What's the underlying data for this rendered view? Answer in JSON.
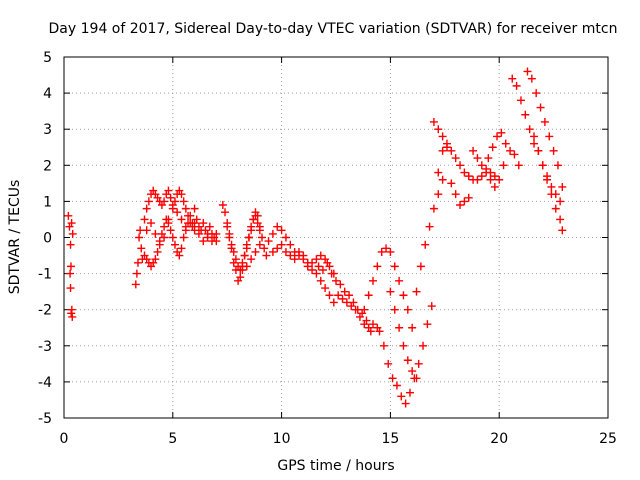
{
  "chart_data": {
    "type": "scatter",
    "title": "Day 194 of 2017, Sidereal Day-to-day VTEC variation (SDTVAR) for receiver mtcn",
    "xlabel": "GPS time / hours",
    "ylabel": "SDTVAR / TECUs",
    "xlim": [
      0,
      25
    ],
    "ylim": [
      -5,
      5
    ],
    "xticks": [
      0,
      5,
      10,
      15,
      20,
      25
    ],
    "yticks": [
      -5,
      -4,
      -3,
      -2,
      -1,
      0,
      1,
      2,
      3,
      4,
      5
    ],
    "grid": true,
    "marker": "+",
    "color": "#ff0000",
    "series": [
      {
        "name": "SDTVAR",
        "x": [
          0.2,
          0.25,
          0.3,
          0.35,
          0.4,
          0.32,
          0.28,
          0.3,
          0.33,
          0.36,
          0.38,
          3.3,
          3.35,
          3.4,
          3.45,
          3.5,
          3.55,
          3.6,
          3.7,
          3.8,
          3.9,
          4.0,
          4.1,
          4.2,
          4.3,
          4.4,
          4.5,
          4.6,
          4.7,
          4.8,
          4.9,
          5.0,
          5.1,
          5.2,
          5.3,
          5.4,
          5.5,
          5.6,
          5.7,
          5.8,
          5.9,
          6.0,
          6.1,
          6.2,
          6.3,
          6.4,
          6.5,
          6.6,
          6.7,
          6.8,
          6.9,
          7.0,
          3.7,
          3.8,
          3.9,
          4.0,
          4.1,
          4.2,
          4.3,
          4.4,
          4.5,
          4.6,
          4.7,
          4.8,
          4.9,
          5.0,
          5.1,
          5.2,
          5.3,
          5.4,
          5.5,
          5.6,
          5.7,
          5.8,
          5.9,
          6.0,
          6.2,
          6.4,
          6.6,
          6.8,
          7.0,
          3.8,
          4.0,
          4.2,
          4.4,
          4.6,
          4.8,
          5.0,
          5.2,
          5.4,
          5.6,
          5.8,
          6.0,
          7.3,
          7.4,
          7.5,
          7.6,
          7.7,
          7.8,
          7.9,
          8.0,
          8.1,
          8.2,
          8.3,
          8.4,
          8.5,
          8.6,
          8.7,
          8.8,
          8.9,
          9.0,
          9.1,
          9.2,
          9.3,
          7.5,
          7.6,
          7.7,
          7.8,
          7.9,
          8.0,
          8.1,
          8.2,
          8.3,
          8.4,
          8.5,
          8.6,
          8.7,
          8.8,
          8.9,
          9.0,
          8.2,
          8.4,
          8.6,
          8.8,
          9.0,
          9.4,
          9.6,
          9.8,
          10.0,
          10.2,
          10.4,
          10.6,
          10.8,
          11.0,
          11.2,
          11.4,
          11.6,
          11.8,
          12.0,
          12.2,
          12.4,
          9.6,
          9.8,
          10.0,
          10.2,
          10.4,
          10.6,
          10.8,
          11.0,
          11.2,
          11.4,
          11.6,
          11.8,
          12.0,
          12.2,
          12.4,
          12.6,
          12.8,
          13.0,
          13.2,
          13.4,
          13.6,
          13.8,
          14.0,
          14.2,
          14.4,
          11.7,
          11.9,
          12.1,
          12.3,
          12.5,
          12.7,
          12.9,
          13.1,
          13.3,
          13.5,
          13.7,
          13.9,
          14.1,
          13.8,
          14.0,
          14.2,
          14.4,
          14.6,
          14.8,
          15.0,
          15.2,
          15.4,
          15.6,
          15.8,
          16.0,
          16.2,
          16.4,
          16.6,
          16.8,
          17.0,
          17.2,
          17.4,
          14.5,
          14.7,
          14.9,
          15.1,
          15.3,
          15.5,
          15.7,
          15.9,
          16.1,
          16.3,
          16.5,
          16.7,
          16.9,
          15.0,
          15.2,
          15.4,
          15.6,
          15.8,
          16.0,
          16.2,
          17.2,
          17.4,
          17.6,
          17.8,
          18.0,
          18.2,
          18.4,
          18.6,
          18.8,
          19.0,
          19.2,
          19.4,
          19.6,
          19.8,
          17.0,
          17.2,
          17.4,
          17.6,
          17.8,
          18.0,
          18.2,
          18.4,
          18.6,
          19.5,
          19.7,
          19.9,
          20.1,
          20.3,
          20.5,
          20.7,
          20.9,
          20.6,
          20.8,
          21.0,
          21.2,
          21.4,
          21.6,
          21.8,
          22.0,
          22.2,
          22.4,
          22.6,
          22.8,
          21.3,
          21.5,
          21.7,
          21.9,
          22.1,
          22.3,
          22.5,
          22.7,
          22.9,
          21.6,
          21.8,
          22.0,
          22.2,
          22.4,
          22.6,
          22.8,
          22.9,
          18.8,
          19.0,
          19.2,
          19.4,
          19.6,
          19.8,
          20.0,
          20.2
        ],
        "y": [
          0.6,
          0.3,
          -0.2,
          0.4,
          0.1,
          -0.8,
          -1.0,
          -1.4,
          -2.1,
          -2.0,
          -2.2,
          -1.3,
          -1.0,
          -0.7,
          0.0,
          0.2,
          -0.3,
          -0.6,
          0.5,
          0.8,
          1.0,
          1.2,
          1.3,
          1.2,
          1.1,
          1.0,
          0.9,
          1.0,
          1.2,
          1.3,
          1.1,
          0.9,
          1.0,
          1.2,
          1.3,
          1.2,
          1.0,
          0.8,
          0.6,
          0.4,
          0.3,
          0.4,
          0.5,
          0.3,
          0.2,
          0.4,
          0.2,
          0.1,
          0.3,
          0.1,
          0.0,
          -0.1,
          -0.5,
          -0.6,
          -0.7,
          -0.8,
          -0.7,
          -0.6,
          -0.4,
          -0.2,
          0.1,
          0.3,
          0.5,
          0.4,
          0.2,
          0.0,
          -0.2,
          -0.4,
          -0.5,
          -0.3,
          0.0,
          0.2,
          0.4,
          0.6,
          0.4,
          0.2,
          0.1,
          -0.1,
          0.0,
          -0.1,
          0.1,
          0.2,
          0.4,
          0.1,
          -0.1,
          0.0,
          0.5,
          0.8,
          0.7,
          0.5,
          0.3,
          0.6,
          0.8,
          0.9,
          0.7,
          0.4,
          0.0,
          -0.3,
          -0.7,
          -0.9,
          -1.2,
          -1.1,
          -0.8,
          -0.5,
          -0.3,
          0.0,
          0.3,
          0.5,
          0.6,
          0.4,
          0.2,
          0.0,
          -0.3,
          -0.5,
          0.3,
          0.1,
          -0.2,
          -0.4,
          -0.6,
          -0.8,
          -0.9,
          -0.7,
          -0.5,
          -0.2,
          0.0,
          0.2,
          0.5,
          0.7,
          0.6,
          0.3,
          -0.9,
          -0.8,
          -0.6,
          -0.4,
          -0.2,
          -0.1,
          0.1,
          0.3,
          0.2,
          0.0,
          -0.2,
          -0.4,
          -0.5,
          -0.6,
          -0.8,
          -0.7,
          -0.6,
          -0.5,
          -0.6,
          -0.8,
          -1.0,
          -0.4,
          -0.3,
          -0.2,
          -0.4,
          -0.5,
          -0.6,
          -0.4,
          -0.5,
          -0.7,
          -0.9,
          -1.0,
          -1.2,
          -1.4,
          -1.6,
          -1.8,
          -1.6,
          -1.7,
          -1.8,
          -1.9,
          -2.0,
          -2.2,
          -2.4,
          -2.5,
          -2.4,
          -2.5,
          -0.8,
          -0.9,
          -0.7,
          -1.0,
          -1.2,
          -1.3,
          -1.5,
          -1.6,
          -1.8,
          -2.0,
          -2.1,
          -2.3,
          -2.6,
          -2.0,
          -1.6,
          -1.2,
          -0.8,
          -0.4,
          -0.3,
          -0.4,
          -0.8,
          -1.2,
          -1.6,
          -2.0,
          -2.5,
          -1.5,
          -0.8,
          -0.2,
          0.3,
          0.8,
          1.2,
          1.6,
          -2.6,
          -3.0,
          -3.5,
          -3.9,
          -4.1,
          -4.4,
          -4.6,
          -4.3,
          -3.9,
          -3.5,
          -3.0,
          -2.4,
          -1.9,
          -1.5,
          -2.0,
          -2.5,
          -3.0,
          -3.4,
          -3.7,
          -3.9,
          1.8,
          2.4,
          2.6,
          2.4,
          2.2,
          2.0,
          1.8,
          1.7,
          1.6,
          1.6,
          1.7,
          1.9,
          1.8,
          1.7,
          3.2,
          3.0,
          2.8,
          2.5,
          1.5,
          1.2,
          0.9,
          1.0,
          1.1,
          2.2,
          2.5,
          2.8,
          2.9,
          2.6,
          2.4,
          2.3,
          2.0,
          4.4,
          4.2,
          3.8,
          3.4,
          3.0,
          2.6,
          2.4,
          2.0,
          1.7,
          1.4,
          1.2,
          1.0,
          4.6,
          4.4,
          4.0,
          3.6,
          3.2,
          2.8,
          2.4,
          2.0,
          1.4,
          2.8,
          2.4,
          2.0,
          1.6,
          1.2,
          0.8,
          0.5,
          0.2,
          2.4,
          2.2,
          2.0,
          1.8,
          1.6,
          1.4,
          1.6,
          2.0
        ]
      }
    ]
  }
}
